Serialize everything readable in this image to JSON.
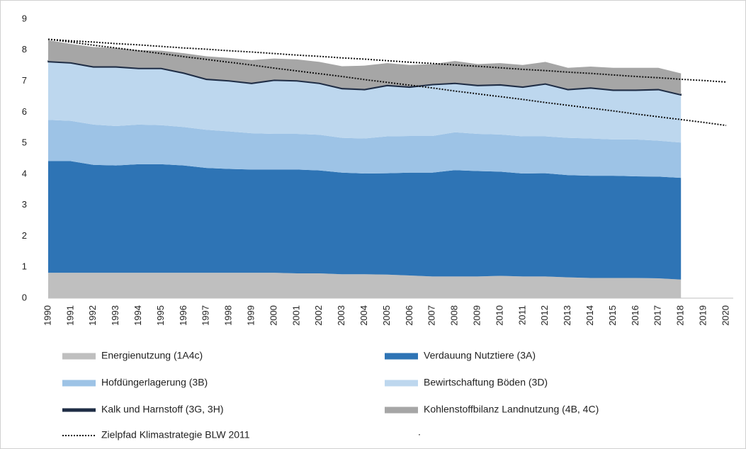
{
  "chart_data": {
    "type": "stacked_area",
    "categories": [
      "1990",
      "1991",
      "1992",
      "1993",
      "1994",
      "1995",
      "1996",
      "1997",
      "1998",
      "1999",
      "2000",
      "2001",
      "2002",
      "2003",
      "2004",
      "2005",
      "2006",
      "2007",
      "2008",
      "2009",
      "2010",
      "2011",
      "2012",
      "2013",
      "2014",
      "2015",
      "2016",
      "2017",
      "2018",
      "2019",
      "2020"
    ],
    "series": [
      {
        "name": "Energienutzung (1A4c)",
        "color": "#bfbfbf",
        "values": [
          0.82,
          0.82,
          0.82,
          0.82,
          0.82,
          0.82,
          0.82,
          0.82,
          0.82,
          0.82,
          0.82,
          0.8,
          0.8,
          0.77,
          0.77,
          0.76,
          0.73,
          0.7,
          0.7,
          0.7,
          0.72,
          0.7,
          0.7,
          0.67,
          0.65,
          0.65,
          0.65,
          0.64,
          0.6,
          null,
          null
        ]
      },
      {
        "name": "Verdauung Nutztiere (3A)",
        "color": "#2e74b5",
        "values": [
          3.6,
          3.6,
          3.48,
          3.46,
          3.5,
          3.5,
          3.46,
          3.38,
          3.35,
          3.33,
          3.33,
          3.35,
          3.32,
          3.28,
          3.25,
          3.27,
          3.32,
          3.35,
          3.43,
          3.4,
          3.36,
          3.32,
          3.33,
          3.3,
          3.3,
          3.3,
          3.28,
          3.28,
          3.28,
          null,
          null
        ]
      },
      {
        "name": "Hofdüngerlagerung (3B)",
        "color": "#9dc3e6",
        "values": [
          1.33,
          1.3,
          1.3,
          1.27,
          1.28,
          1.26,
          1.24,
          1.23,
          1.21,
          1.17,
          1.15,
          1.15,
          1.15,
          1.12,
          1.13,
          1.19,
          1.18,
          1.18,
          1.22,
          1.2,
          1.2,
          1.2,
          1.19,
          1.2,
          1.2,
          1.17,
          1.19,
          1.16,
          1.14,
          null,
          null
        ]
      },
      {
        "name": "Bewirtschaftung Böden (3D)",
        "color": "#bdd7ee",
        "values": [
          1.87,
          1.86,
          1.85,
          1.9,
          1.8,
          1.82,
          1.73,
          1.62,
          1.62,
          1.6,
          1.72,
          1.7,
          1.65,
          1.58,
          1.57,
          1.63,
          1.57,
          1.65,
          1.57,
          1.55,
          1.59,
          1.58,
          1.68,
          1.55,
          1.62,
          1.58,
          1.58,
          1.64,
          1.53,
          null,
          null
        ]
      },
      {
        "name": " Kalk und Harnstoff (3G, 3H)",
        "color": "#1f2d45",
        "values": [
          0.03,
          0.03,
          0.03,
          0.03,
          0.03,
          0.03,
          0.03,
          0.03,
          0.03,
          0.03,
          0.03,
          0.03,
          0.03,
          0.03,
          0.03,
          0.03,
          0.03,
          0.03,
          0.03,
          0.03,
          0.03,
          0.03,
          0.03,
          0.03,
          0.03,
          0.03,
          0.03,
          0.03,
          0.03,
          null,
          null
        ]
      },
      {
        "name": "Kohlenstoffbilanz Landnutzung (4B, 4C)",
        "color": "#a6a6a6",
        "values": [
          0.67,
          0.59,
          0.62,
          0.59,
          0.57,
          0.55,
          0.62,
          0.72,
          0.72,
          0.73,
          0.68,
          0.67,
          0.67,
          0.7,
          0.75,
          0.7,
          0.69,
          0.64,
          0.7,
          0.67,
          0.68,
          0.69,
          0.69,
          0.68,
          0.67,
          0.7,
          0.7,
          0.68,
          0.67,
          null,
          null
        ]
      }
    ],
    "lines": [
      {
        "name": "Zielpfad Klimastrategie BLW 2011",
        "color": "#111111",
        "values": [
          8.35,
          8.3,
          8.26,
          8.21,
          8.17,
          8.12,
          8.07,
          8.03,
          7.98,
          7.94,
          7.89,
          7.84,
          7.8,
          7.75,
          7.71,
          7.66,
          7.61,
          7.57,
          7.52,
          7.48,
          7.43,
          7.38,
          7.34,
          7.29,
          7.25,
          7.2,
          7.15,
          7.11,
          7.06,
          7.02,
          6.97
        ]
      },
      {
        "name": ".",
        "color": "#111111",
        "values": [
          8.35,
          8.26,
          8.16,
          8.07,
          7.98,
          7.89,
          7.79,
          7.7,
          7.61,
          7.52,
          7.42,
          7.33,
          7.24,
          7.15,
          7.05,
          6.96,
          6.87,
          6.78,
          6.68,
          6.59,
          6.5,
          6.41,
          6.31,
          6.22,
          6.13,
          6.04,
          5.94,
          5.85,
          5.76,
          5.67,
          5.57
        ]
      }
    ],
    "ylim": [
      0,
      9
    ],
    "yticks": [
      0,
      1,
      2,
      3,
      4,
      5,
      6,
      7,
      8,
      9
    ],
    "legend": "bottom"
  }
}
